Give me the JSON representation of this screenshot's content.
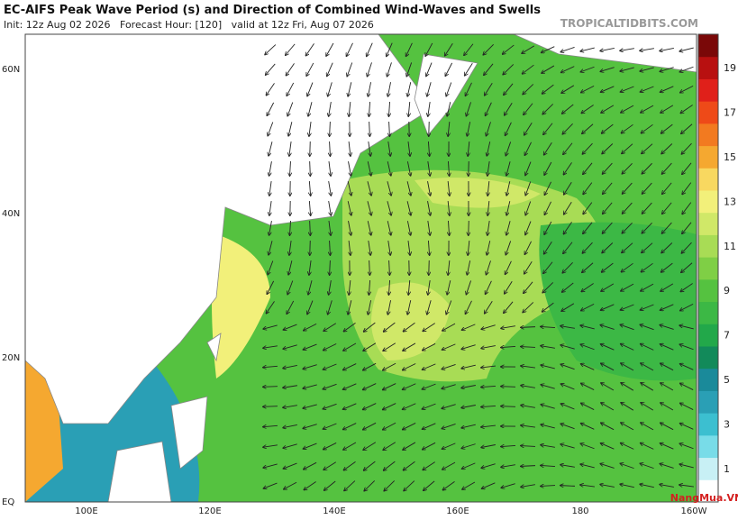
{
  "header": {
    "title": "EC-AIFS Peak Wave Period (s) and Direction of Combined Wind-Waves and Swells",
    "subtitle": "Init: 12z Aug 02 2026   Forecast Hour: [120]   valid at 12z Fri, Aug 07 2026",
    "site": "TROPICALTIDBITS.COM"
  },
  "axes": {
    "lat_labels": [
      "60N",
      "40N",
      "20N",
      "EQ"
    ],
    "lon_labels": [
      "100E",
      "120E",
      "140E",
      "160E",
      "180",
      "160W"
    ]
  },
  "colorbar": {
    "labels": [
      "1",
      "3",
      "5",
      "7",
      "9",
      "11",
      "13",
      "15",
      "17",
      "19"
    ],
    "colors": [
      "#ffffff",
      "#c8f0f5",
      "#78dce8",
      "#3cbfd0",
      "#2a9fb5",
      "#1a8a9a",
      "#128a5a",
      "#22a84a",
      "#3cb845",
      "#55c240",
      "#7fcf45",
      "#a8dc55",
      "#d0e868",
      "#f2f07a",
      "#f8d860",
      "#f5a830",
      "#f27a20",
      "#ee4a18",
      "#e0201a",
      "#b81010",
      "#7a0808"
    ]
  },
  "watermark": "NangMua.VN"
}
